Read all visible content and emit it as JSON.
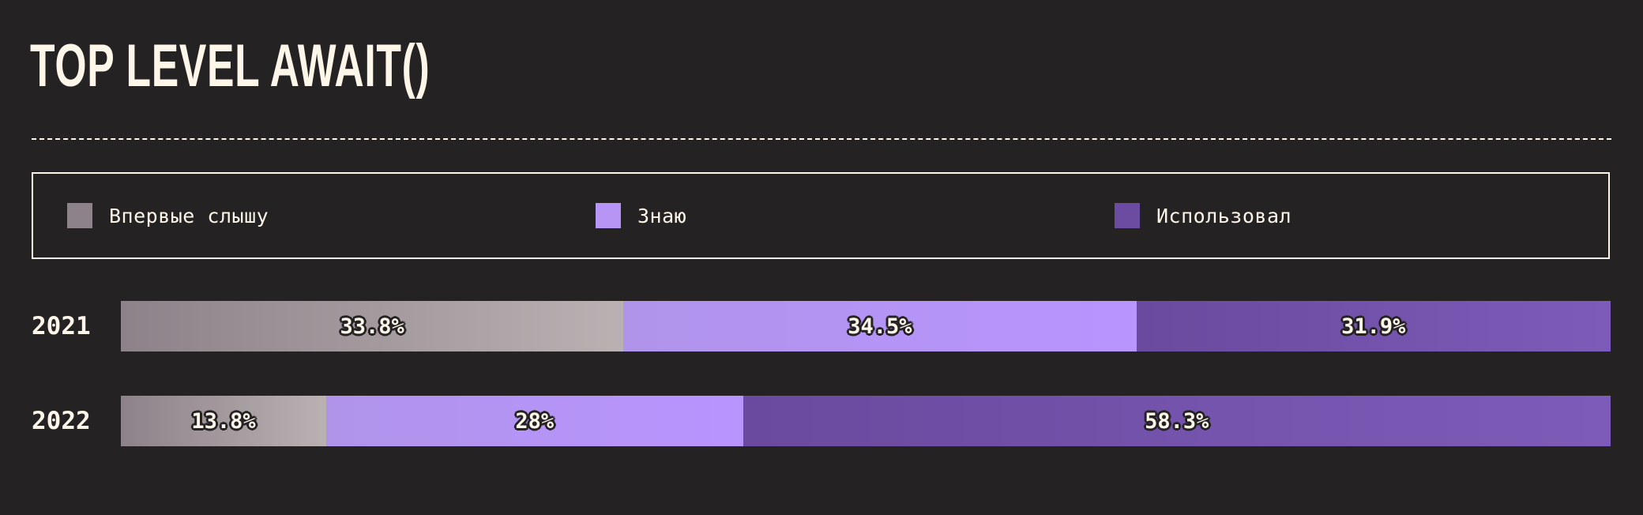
{
  "chart_data": {
    "type": "bar",
    "orientation": "horizontal",
    "stacked": true,
    "normalized": true,
    "title": "TOP LEVEL AWAIT()",
    "categories": [
      "2021",
      "2022"
    ],
    "series": [
      {
        "name": "Впервые слышу",
        "color": "#8d8289",
        "values": [
          33.8,
          13.8
        ],
        "labels": [
          "33.8%",
          "13.8%"
        ]
      },
      {
        "name": "Знаю",
        "color": "#b795f5",
        "values": [
          34.5,
          28
        ],
        "labels": [
          "34.5%",
          "28%"
        ]
      },
      {
        "name": "Использовал",
        "color": "#6c4ca1",
        "values": [
          31.9,
          58.3
        ],
        "labels": [
          "31.9%",
          "58.3%"
        ]
      }
    ],
    "legend": "top",
    "grid": false
  }
}
